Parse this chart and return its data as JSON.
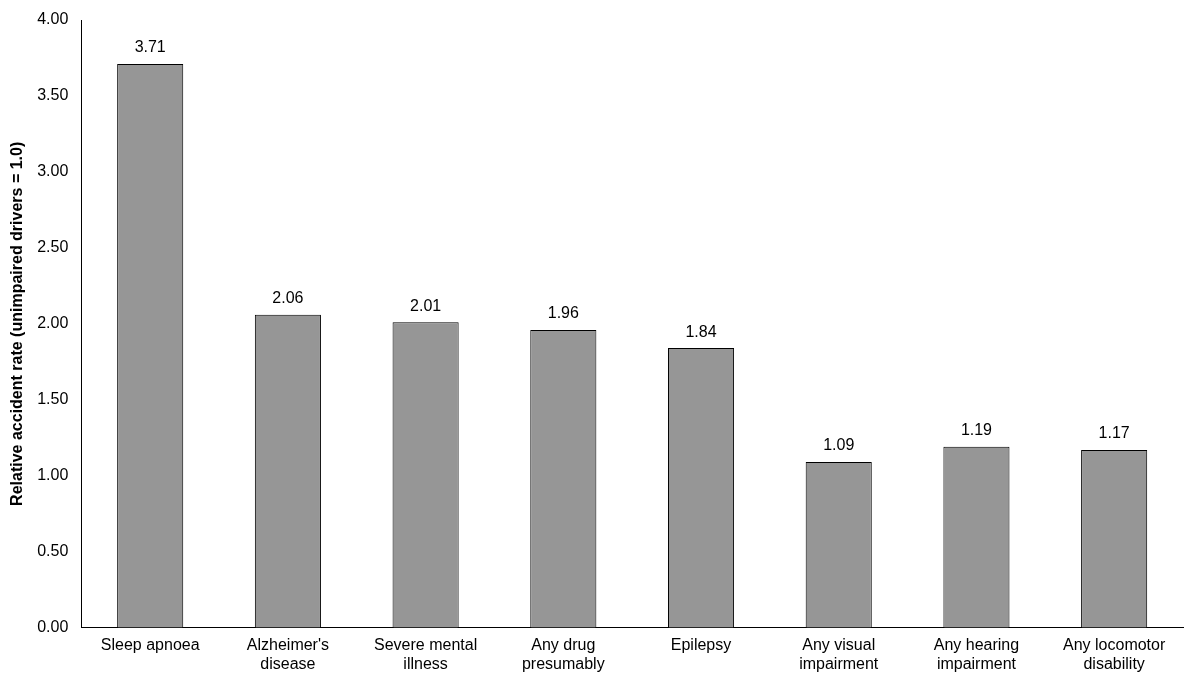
{
  "chart_data": {
    "type": "bar",
    "ylabel": "Relative accident rate (unimpaired drivers = 1.0)",
    "categories": [
      "Sleep apnoea",
      "Alzheimer's disease",
      "Severe mental illness",
      "Any drug presumably",
      "Epilepsy",
      "Any visual impairment",
      "Any hearing impairment",
      "Any locomotor disability"
    ],
    "values": [
      3.71,
      2.06,
      2.01,
      1.96,
      1.84,
      1.09,
      1.19,
      1.17
    ],
    "color": "#969696",
    "ylim": [
      0,
      4
    ],
    "yticks": [
      {
        "value": 0,
        "label": "0.00"
      },
      {
        "value": 0.5,
        "label": "0.50"
      },
      {
        "value": 1,
        "label": "1.00"
      },
      {
        "value": 1.5,
        "label": "1.50"
      },
      {
        "value": 2,
        "label": "2.00"
      },
      {
        "value": 2.5,
        "label": "2.50"
      },
      {
        "value": 3,
        "label": "3.00"
      },
      {
        "value": 3.5,
        "label": "3.50"
      },
      {
        "value": 4,
        "label": "4.00"
      }
    ],
    "data_labels": true,
    "grid": false,
    "legend": false
  }
}
